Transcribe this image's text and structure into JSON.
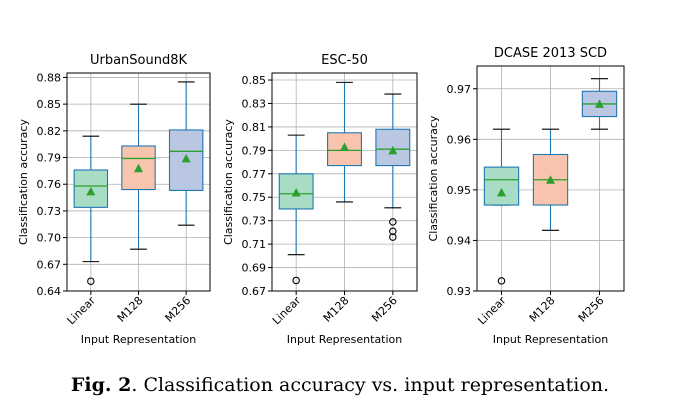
{
  "caption": {
    "label": "Fig. 2",
    "text": ". Classification accuracy vs. input representation."
  },
  "colors": {
    "box_fills": [
      "#a9dcc4",
      "#f9c4ae",
      "#bac7e3"
    ],
    "box_edge": "#1f77b4",
    "median_line": "#2ca02c",
    "mean_marker": "#2ca02c"
  },
  "chart_data": [
    {
      "type": "box",
      "title": "UrbanSound8K",
      "xlabel": "Input Representation",
      "ylabel": "Classification accuracy",
      "categories": [
        "Linear",
        "M128",
        "M256"
      ],
      "ylim": [
        0.64,
        0.885
      ],
      "yticks": [
        0.64,
        0.67,
        0.7,
        0.73,
        0.76,
        0.79,
        0.82,
        0.85,
        0.88
      ],
      "ytick_labels": [
        "0.64",
        "0.67",
        "0.70",
        "0.73",
        "0.76",
        "0.79",
        "0.82",
        "0.85",
        "0.88"
      ],
      "grid": true,
      "boxes": [
        {
          "whisker_low": 0.673,
          "q1": 0.734,
          "median": 0.758,
          "q3": 0.776,
          "whisker_high": 0.814,
          "mean": 0.752,
          "outliers": [
            0.651
          ]
        },
        {
          "whisker_low": 0.687,
          "q1": 0.754,
          "median": 0.789,
          "q3": 0.803,
          "whisker_high": 0.85,
          "mean": 0.778,
          "outliers": []
        },
        {
          "whisker_low": 0.714,
          "q1": 0.753,
          "median": 0.797,
          "q3": 0.821,
          "whisker_high": 0.875,
          "mean": 0.789,
          "outliers": []
        }
      ]
    },
    {
      "type": "box",
      "title": "ESC-50",
      "xlabel": "Input Representation",
      "ylabel": "Classification accuracy",
      "categories": [
        "Linear",
        "M128",
        "M256"
      ],
      "ylim": [
        0.67,
        0.856
      ],
      "yticks": [
        0.67,
        0.69,
        0.71,
        0.73,
        0.75,
        0.77,
        0.79,
        0.81,
        0.83,
        0.85
      ],
      "ytick_labels": [
        "0.67",
        "0.69",
        "0.71",
        "0.73",
        "0.75",
        "0.77",
        "0.79",
        "0.81",
        "0.83",
        "0.85"
      ],
      "grid": true,
      "boxes": [
        {
          "whisker_low": 0.701,
          "q1": 0.74,
          "median": 0.753,
          "q3": 0.77,
          "whisker_high": 0.803,
          "mean": 0.754,
          "outliers": [
            0.679
          ]
        },
        {
          "whisker_low": 0.746,
          "q1": 0.777,
          "median": 0.79,
          "q3": 0.805,
          "whisker_high": 0.848,
          "mean": 0.793,
          "outliers": []
        },
        {
          "whisker_low": 0.741,
          "q1": 0.777,
          "median": 0.791,
          "q3": 0.808,
          "whisker_high": 0.838,
          "mean": 0.79,
          "outliers": [
            0.729,
            0.721,
            0.716
          ]
        }
      ]
    },
    {
      "type": "box",
      "title": "DCASE 2013 SCD",
      "xlabel": "Input Representation",
      "ylabel": "Classification accuracy",
      "categories": [
        "Linear",
        "M128",
        "M256"
      ],
      "ylim": [
        0.93,
        0.9745
      ],
      "yticks": [
        0.93,
        0.94,
        0.95,
        0.96,
        0.97
      ],
      "ytick_labels": [
        "0.93",
        "0.94",
        "0.95",
        "0.96",
        "0.97"
      ],
      "grid": true,
      "boxes": [
        {
          "whisker_low": 0.947,
          "q1": 0.947,
          "median": 0.952,
          "q3": 0.9545,
          "whisker_high": 0.962,
          "mean": 0.9495,
          "outliers": [
            0.932
          ]
        },
        {
          "whisker_low": 0.942,
          "q1": 0.947,
          "median": 0.952,
          "q3": 0.957,
          "whisker_high": 0.962,
          "mean": 0.952,
          "outliers": []
        },
        {
          "whisker_low": 0.962,
          "q1": 0.9645,
          "median": 0.967,
          "q3": 0.9695,
          "whisker_high": 0.972,
          "mean": 0.967,
          "outliers": []
        }
      ]
    }
  ]
}
